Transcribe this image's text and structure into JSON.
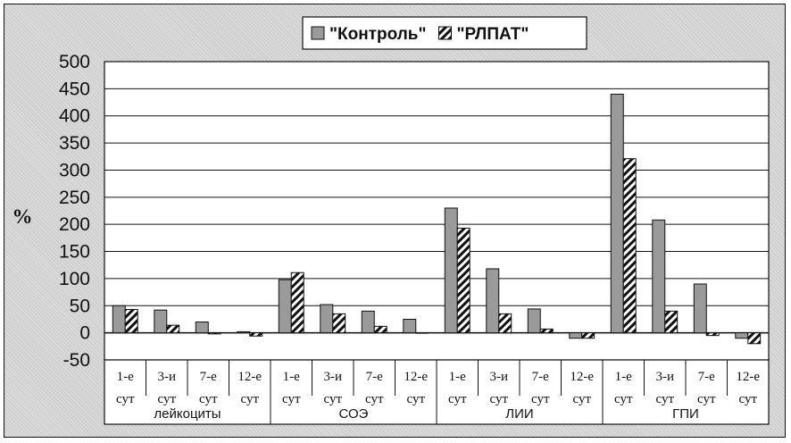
{
  "chart_data": {
    "type": "bar",
    "ylabel": "%",
    "ylim": [
      -50,
      500
    ],
    "yticks": [
      -50,
      0,
      50,
      100,
      150,
      200,
      250,
      300,
      350,
      400,
      450,
      500
    ],
    "grid": true,
    "legend_position": "top-right",
    "groups": [
      "лейкоциты",
      "СОЭ",
      "ЛИИ",
      "ГПИ"
    ],
    "categories": [
      [
        "1-е",
        "сут"
      ],
      [
        "3-и",
        "сут"
      ],
      [
        "7-е",
        "сут"
      ],
      [
        "12-е",
        "сут"
      ],
      [
        "1-е",
        "сут"
      ],
      [
        "3-и",
        "сут"
      ],
      [
        "7-е",
        "сут"
      ],
      [
        "12-е",
        "сут"
      ],
      [
        "1-е",
        "сут"
      ],
      [
        "3-и",
        "сут"
      ],
      [
        "7-е",
        "сут"
      ],
      [
        "12-е",
        "сут"
      ],
      [
        "1-е",
        "сут"
      ],
      [
        "3-и",
        "сут"
      ],
      [
        "7-е",
        "сут"
      ],
      [
        "12-е",
        "сут"
      ]
    ],
    "series": [
      {
        "name": "\"Контроль\"",
        "pattern": "solid",
        "color": "#9a9a9a",
        "values": [
          50,
          42,
          20,
          2,
          98,
          52,
          40,
          25,
          230,
          118,
          44,
          -10,
          440,
          208,
          90,
          -10
        ]
      },
      {
        "name": "\"РЛПАТ\"",
        "pattern": "hatched",
        "color": "#ffffff",
        "values": [
          43,
          14,
          -2,
          -6,
          111,
          35,
          12,
          0,
          193,
          35,
          7,
          -10,
          321,
          40,
          -5,
          -20
        ]
      }
    ]
  }
}
